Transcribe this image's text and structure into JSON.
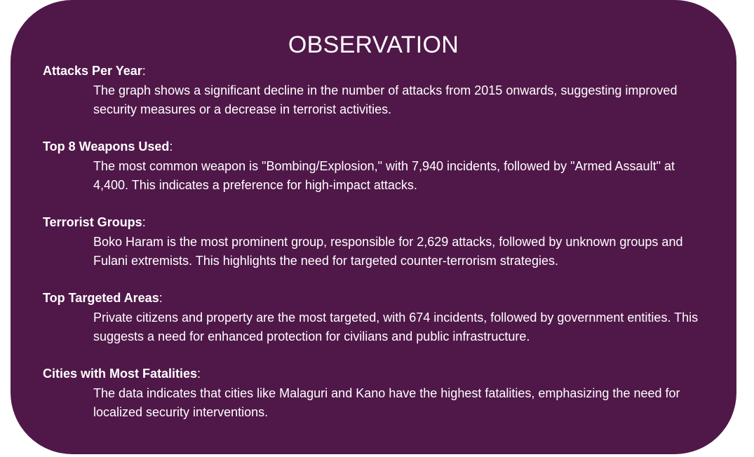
{
  "title": "OBSERVATION",
  "sections": [
    {
      "heading": "Attacks Per Year",
      "colon": ":",
      "body": "The graph shows a significant decline in the number of attacks from 2015 onwards, suggesting improved security measures or a decrease in terrorist activities."
    },
    {
      "heading": "Top 8 Weapons Used",
      "colon": ":",
      "body": "The most common weapon is \"Bombing/Explosion,\" with 7,940 incidents, followed by \"Armed Assault\" at 4,400. This indicates a preference for high-impact attacks."
    },
    {
      "heading": "Terrorist Groups",
      "colon": ":",
      "body": "Boko Haram is the most prominent group, responsible for 2,629 attacks, followed by unknown groups and Fulani extremists. This highlights the need for targeted counter-terrorism strategies."
    },
    {
      "heading": "Top Targeted Areas",
      "colon": ":",
      "body": "Private citizens and property are the most targeted, with 674 incidents, followed by government entities. This suggests a need for enhanced protection for civilians and public infrastructure."
    },
    {
      "heading": "Cities with Most Fatalities",
      "colon": ":",
      "body": "The data indicates that cities like Malaguri and Kano have the highest fatalities, emphasizing the need for localized security interventions."
    }
  ],
  "colors": {
    "card_background": "#501849",
    "text": "#ffffff",
    "page_background": "#ffffff"
  }
}
